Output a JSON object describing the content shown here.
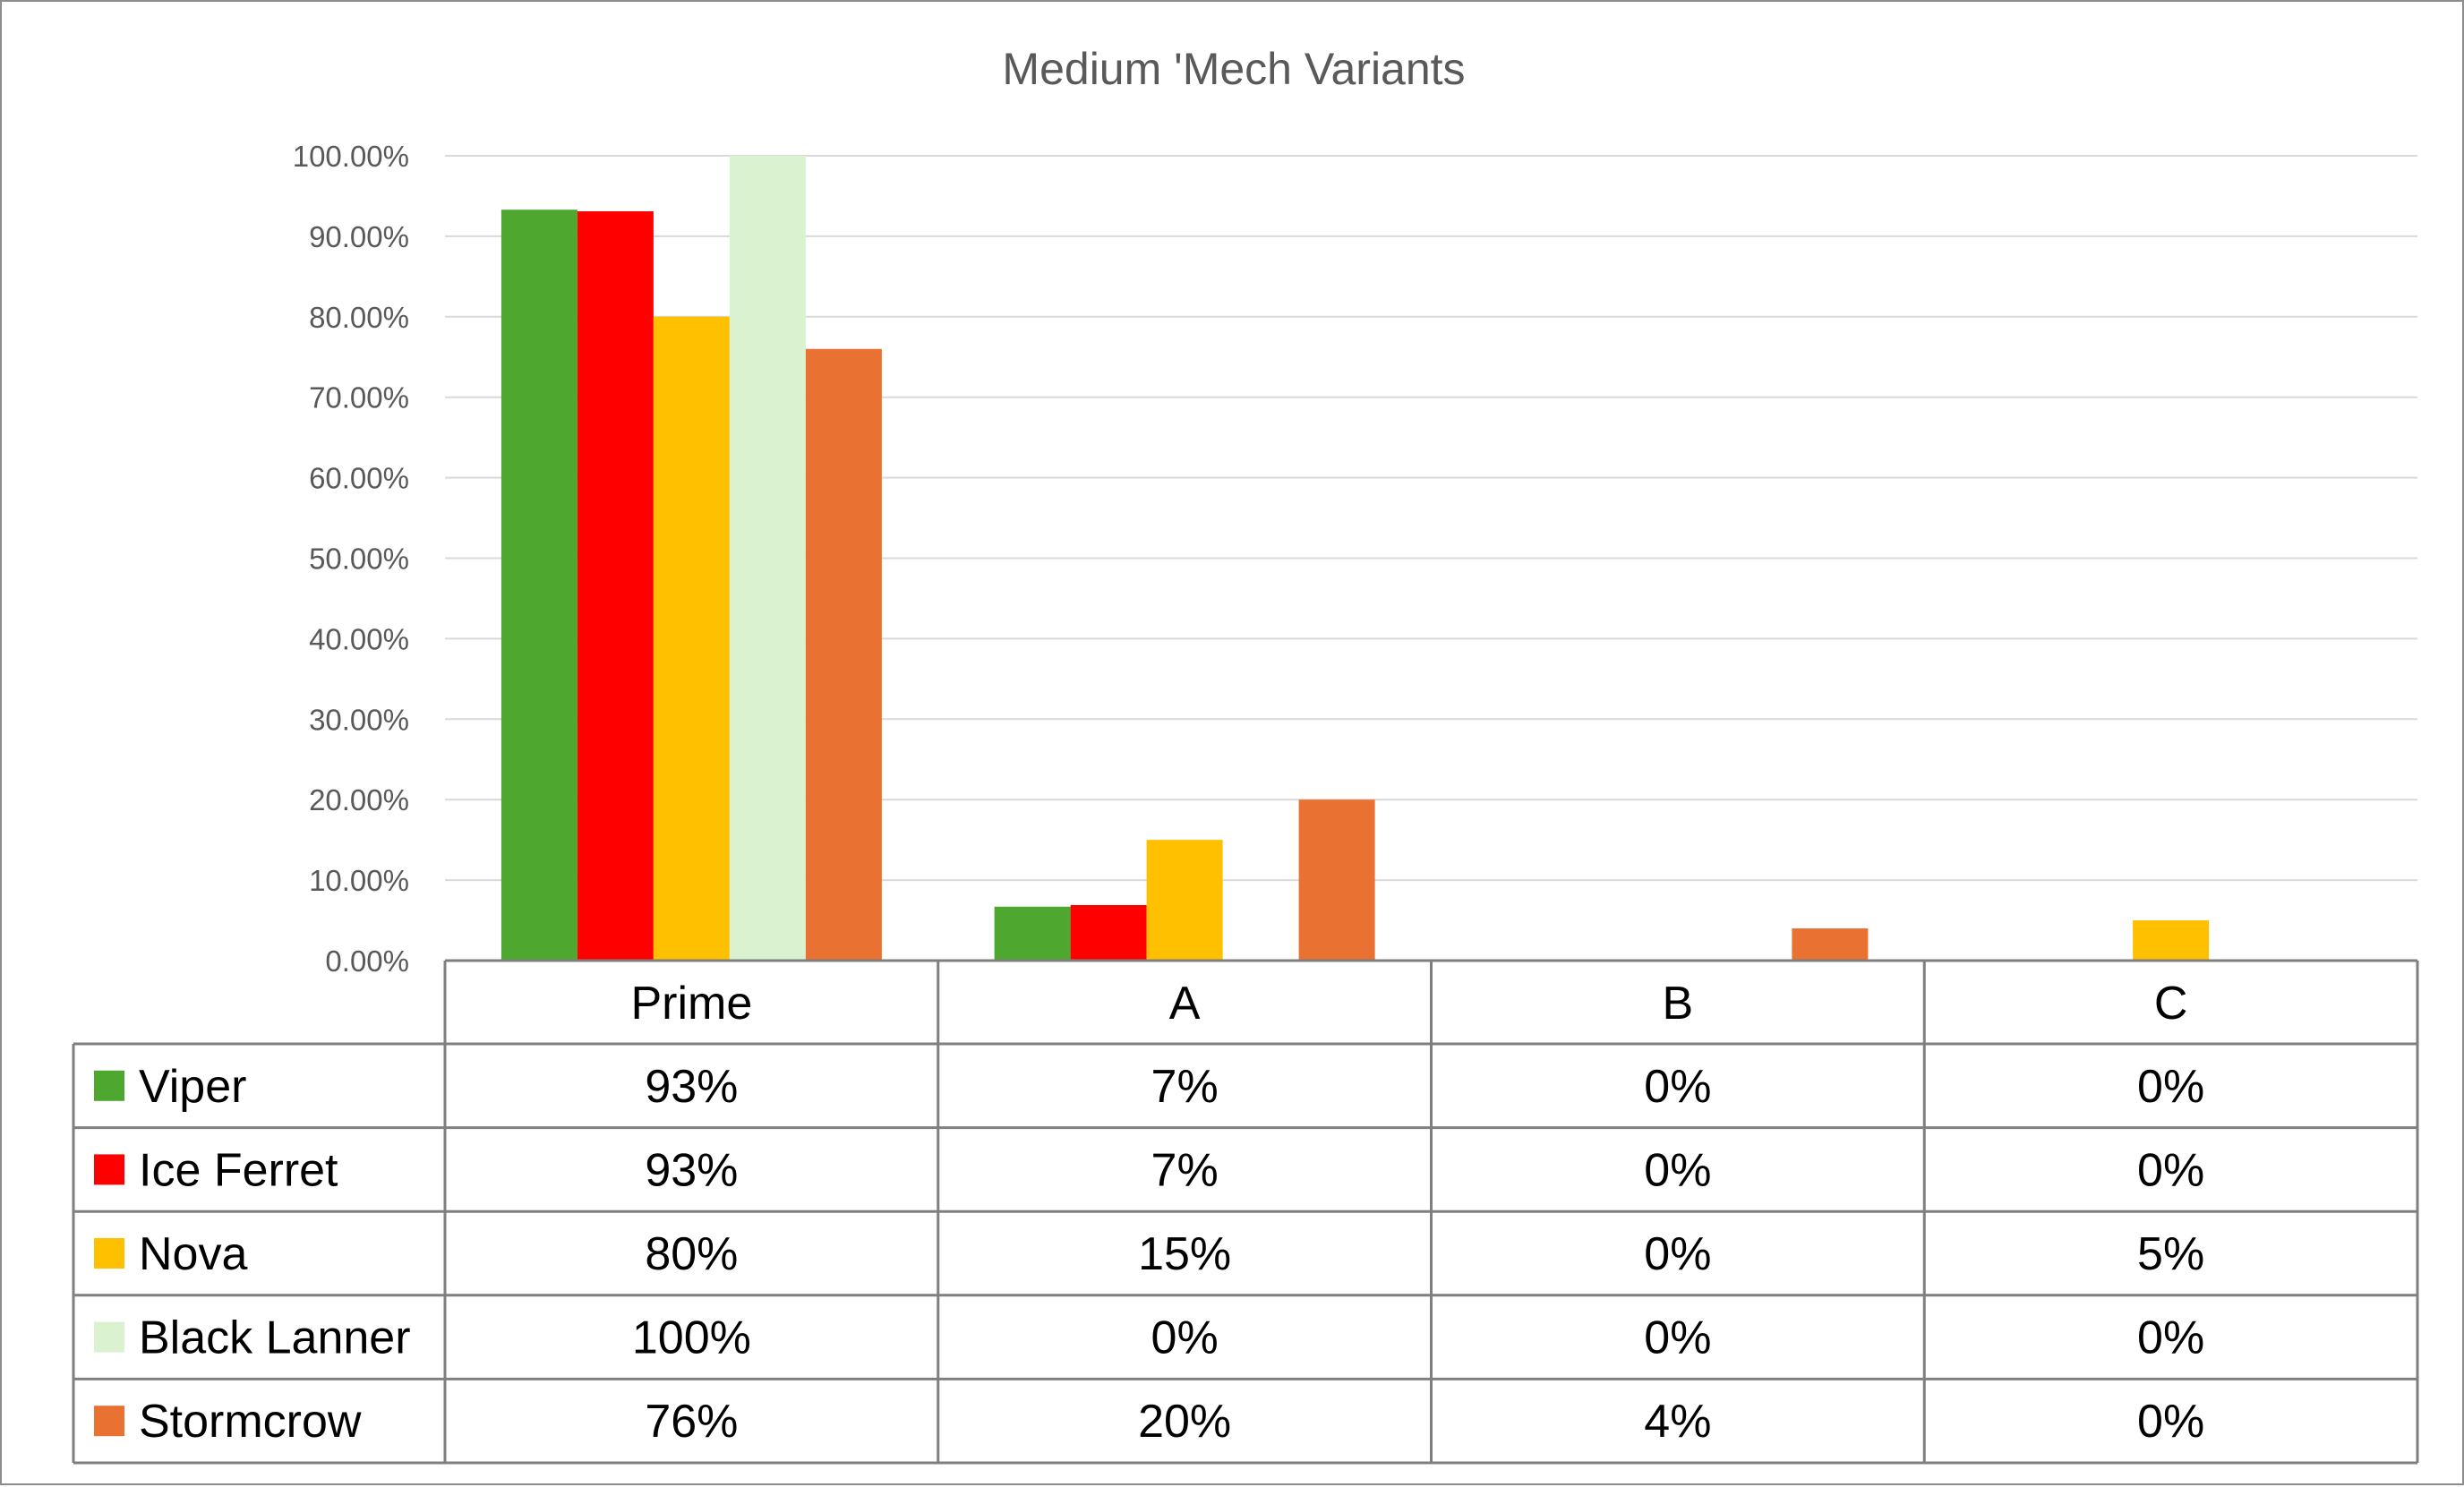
{
  "chart_data": {
    "type": "bar",
    "title": "Medium 'Mech Variants",
    "categories": [
      "Prime",
      "A",
      "B",
      "C"
    ],
    "ylim": [
      0,
      100
    ],
    "yticks": [
      "0.00%",
      "10.00%",
      "20.00%",
      "30.00%",
      "40.00%",
      "50.00%",
      "60.00%",
      "70.00%",
      "80.00%",
      "90.00%",
      "100.00%"
    ],
    "grid": true,
    "legend": "data-table",
    "series": [
      {
        "name": "Viper",
        "color": "#4EA72E",
        "values": [
          93.3,
          6.7,
          0,
          0
        ],
        "labels": [
          "93%",
          "7%",
          "0%",
          "0%"
        ]
      },
      {
        "name": "Ice Ferret",
        "color": "#FF0000",
        "values": [
          93.1,
          6.9,
          0,
          0
        ],
        "labels": [
          "93%",
          "7%",
          "0%",
          "0%"
        ]
      },
      {
        "name": "Nova",
        "color": "#FFC000",
        "values": [
          80,
          15,
          0,
          5
        ],
        "labels": [
          "80%",
          "15%",
          "0%",
          "5%"
        ]
      },
      {
        "name": "Black Lanner",
        "color": "#DAF2D0",
        "values": [
          100,
          0,
          0,
          0
        ],
        "labels": [
          "100%",
          "0%",
          "0%",
          "0%"
        ]
      },
      {
        "name": "Stormcrow",
        "color": "#E97132",
        "values": [
          76,
          20,
          4,
          0
        ],
        "labels": [
          "76%",
          "20%",
          "4%",
          "0%"
        ]
      }
    ]
  }
}
